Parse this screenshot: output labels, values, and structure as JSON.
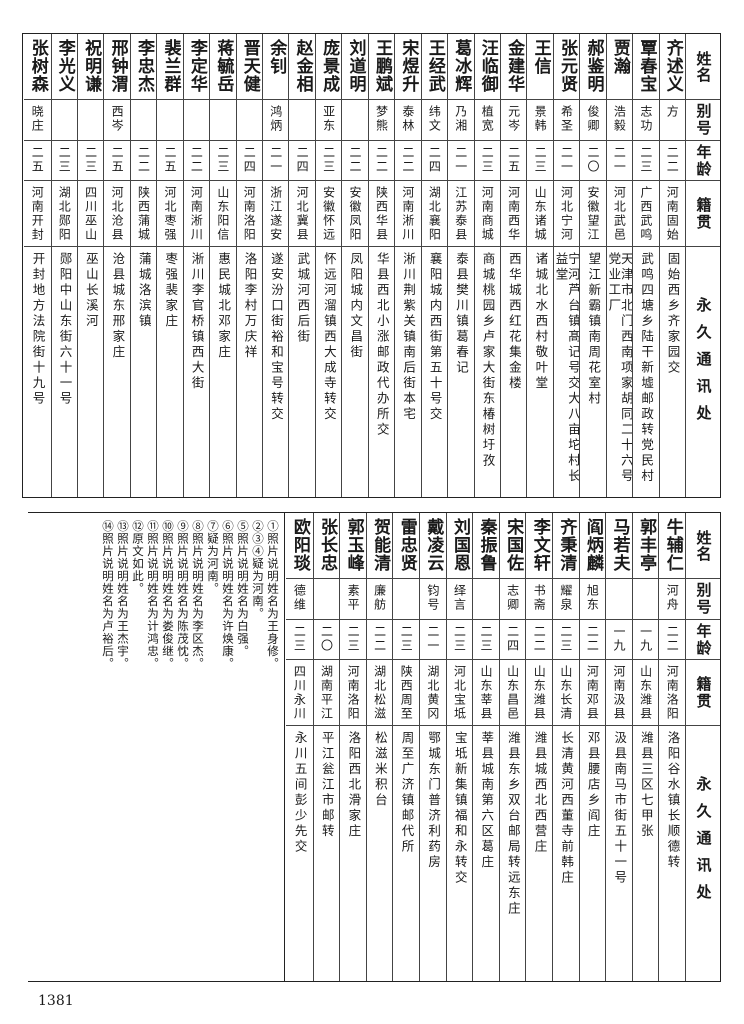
{
  "headers": {
    "name": "姓名",
    "alias": "别号",
    "age": "年龄",
    "origin": "籍贯",
    "address": "永久通讯处"
  },
  "table_top": [
    {
      "name": "齐述义",
      "alias": "方",
      "age": "二二",
      "origin": "河南固始",
      "address": "固始西乡齐家园交"
    },
    {
      "name": "覃春宝",
      "alias": "志功",
      "age": "二三",
      "origin": "广西武鸣",
      "address": "武鸣四塘乡陆干新墟邮政转党民村"
    },
    {
      "name": "贾瀚",
      "alias": "浩毅",
      "age": "二一",
      "origin": "河北武邑",
      "address": "天津市北门西南项家胡同二十六号党业工厂"
    },
    {
      "name": "郝鉴明",
      "alias": "俊卿",
      "age": "二〇",
      "origin": "安徽望江",
      "address": "望江新霸镇南周花室村"
    },
    {
      "name": "张元贤",
      "alias": "希圣",
      "age": "二一",
      "origin": "河北宁河",
      "address": "宁河芦台镇髙记号交大八亩坨村长益堂"
    },
    {
      "name": "王信",
      "alias": "景韩",
      "age": "二三",
      "origin": "山东诸城",
      "address": "诸城北水西村敬叶堂"
    },
    {
      "name": "金建华",
      "alias": "元岑",
      "age": "二五",
      "origin": "河南西华",
      "address": "西华城西红花集金楼"
    },
    {
      "name": "汪临御",
      "alias": "植宽",
      "age": "二三",
      "origin": "河南商城",
      "address": "商城桃园乡卢家大街东椿树圩孜"
    },
    {
      "name": "葛冰辉",
      "alias": "乃湘",
      "age": "二一",
      "origin": "江苏泰县",
      "address": "泰县樊川镇葛春记"
    },
    {
      "name": "王经武",
      "alias": "纬文",
      "age": "二四",
      "origin": "湖北襄阳",
      "address": "襄阳城内西街第五十号交"
    },
    {
      "name": "宋煜升",
      "alias": "泰林",
      "age": "二二",
      "origin": "河南淅川",
      "address": "淅川荆紫关镇南后街本宅"
    },
    {
      "name": "王鹏斌",
      "alias": "梦熊",
      "age": "二二",
      "origin": "陕西华县",
      "address": "华县西北小涨邮政代办所交"
    },
    {
      "name": "刘道明",
      "alias": "",
      "age": "二二",
      "origin": "安徽凤阳",
      "address": "凤阳城内文昌街"
    },
    {
      "name": "庞景成",
      "alias": "亚东",
      "age": "二三",
      "origin": "安徽怀远",
      "address": "怀远河溜镇西大成寺转交"
    },
    {
      "name": "赵金相",
      "alias": "",
      "age": "二四",
      "origin": "河北冀县",
      "address": "武城河西后街"
    },
    {
      "name": "余钊",
      "alias": "鸿炳",
      "age": "二一",
      "origin": "浙江遂安",
      "address": "遂安汾口街裕和宝号转交"
    },
    {
      "name": "晋天健",
      "alias": "",
      "age": "二四",
      "origin": "河南洛阳",
      "address": "洛阳李村万庆祥"
    },
    {
      "name": "蒋毓岳",
      "alias": "",
      "age": "二三",
      "origin": "山东阳信",
      "address": "惠民城北邓家庄"
    },
    {
      "name": "李定华",
      "alias": "",
      "age": "二二",
      "origin": "河南淅川",
      "address": "淅川李官桥镇西大街"
    },
    {
      "name": "裴兰群",
      "alias": "",
      "age": "二五",
      "origin": "河北枣强",
      "address": "枣强裴家庄"
    },
    {
      "name": "李忠杰",
      "alias": "",
      "age": "二二",
      "origin": "陕西蒲城",
      "address": "蒲城洛滨镇"
    },
    {
      "name": "邢钟渭",
      "alias": "西岑",
      "age": "二五",
      "origin": "河北沧县",
      "address": "沧县城东邢家庄"
    },
    {
      "name": "祝明谦",
      "alias": "",
      "age": "二三",
      "origin": "四川巫山",
      "address": "巫山长溪河"
    },
    {
      "name": "李光义",
      "alias": "",
      "age": "二三",
      "origin": "湖北郧阳",
      "address": "郧阳中山东街六十一号"
    },
    {
      "name": "张树森",
      "alias": "晓庄",
      "age": "二五",
      "origin": "河南开封",
      "address": "开封地方法院街十九号"
    }
  ],
  "table_bottom": [
    {
      "name": "牛辅仁",
      "alias": "河舟",
      "age": "二二",
      "origin": "河南洛阳",
      "address": "洛阳谷水镇长顺德转"
    },
    {
      "name": "郭丰亭",
      "alias": "",
      "age": "一九",
      "origin": "山东潍县",
      "address": "潍县三区七甲张"
    },
    {
      "name": "马若夫",
      "alias": "",
      "age": "一九",
      "origin": "河南汲县",
      "address": "汲县南马市街五十一号"
    },
    {
      "name": "阎炳麟",
      "alias": "旭东",
      "age": "二二",
      "origin": "河南邓县",
      "address": "邓县腰店乡阎庄"
    },
    {
      "name": "齐秉清",
      "alias": "耀泉",
      "age": "二三",
      "origin": "山东长清",
      "address": "长清黄河西董寺前韩庄"
    },
    {
      "name": "李文轩",
      "alias": "书斋",
      "age": "二二",
      "origin": "山东潍县",
      "address": "潍县城西北西营庄"
    },
    {
      "name": "宋国佐",
      "alias": "志卿",
      "age": "二四",
      "origin": "山东昌邑",
      "address": "潍县东乡双台邮局转远东庄"
    },
    {
      "name": "秦振鲁",
      "alias": "",
      "age": "二三",
      "origin": "山东莘县",
      "address": "莘县城南第六区葛庄"
    },
    {
      "name": "刘国恩",
      "alias": "绎言",
      "age": "二三",
      "origin": "河北宝坻",
      "address": "宝坻新集镇福和永转交"
    },
    {
      "name": "戴凌云",
      "alias": "钧号",
      "age": "二一",
      "origin": "湖北黄冈",
      "address": "鄂城东门普济利药房"
    },
    {
      "name": "雷忠贤",
      "alias": "",
      "age": "二三",
      "origin": "陕西周至",
      "address": "周至广济镇邮代所"
    },
    {
      "name": "贺能清",
      "alias": "廉舫",
      "age": "二二",
      "origin": "湖北松滋",
      "address": "松滋米积台"
    },
    {
      "name": "郭玉峰",
      "alias": "素平",
      "age": "二三",
      "origin": "河南洛阳",
      "address": "洛阳西北滑家庄"
    },
    {
      "name": "张长忠",
      "alias": "",
      "age": "二〇",
      "origin": "湖南平江",
      "address": "平江瓮江市邮转"
    },
    {
      "name": "欧阳琰",
      "alias": "德维",
      "age": "二三",
      "origin": "四川永川",
      "address": "永川五间彭少先交"
    }
  ],
  "notes": [
    "①照片说明姓名为王身修。",
    "②③④疑为河南。",
    "⑤照片说明姓名为白强。",
    "⑥照片说明姓名为许焕康。",
    "⑦疑为河南。",
    "⑧照片说明姓名为李区杰。",
    "⑨照片说明姓名为陈茂忱。",
    "⑩照片说明姓名为娄俊继。",
    "⑪照片说明姓名为计鸿忠。",
    "⑫原文如此。",
    "⑬照片说明姓名为王杰宇。",
    "⑭照片说明姓名为卢裕后。"
  ],
  "page_number": "1381"
}
